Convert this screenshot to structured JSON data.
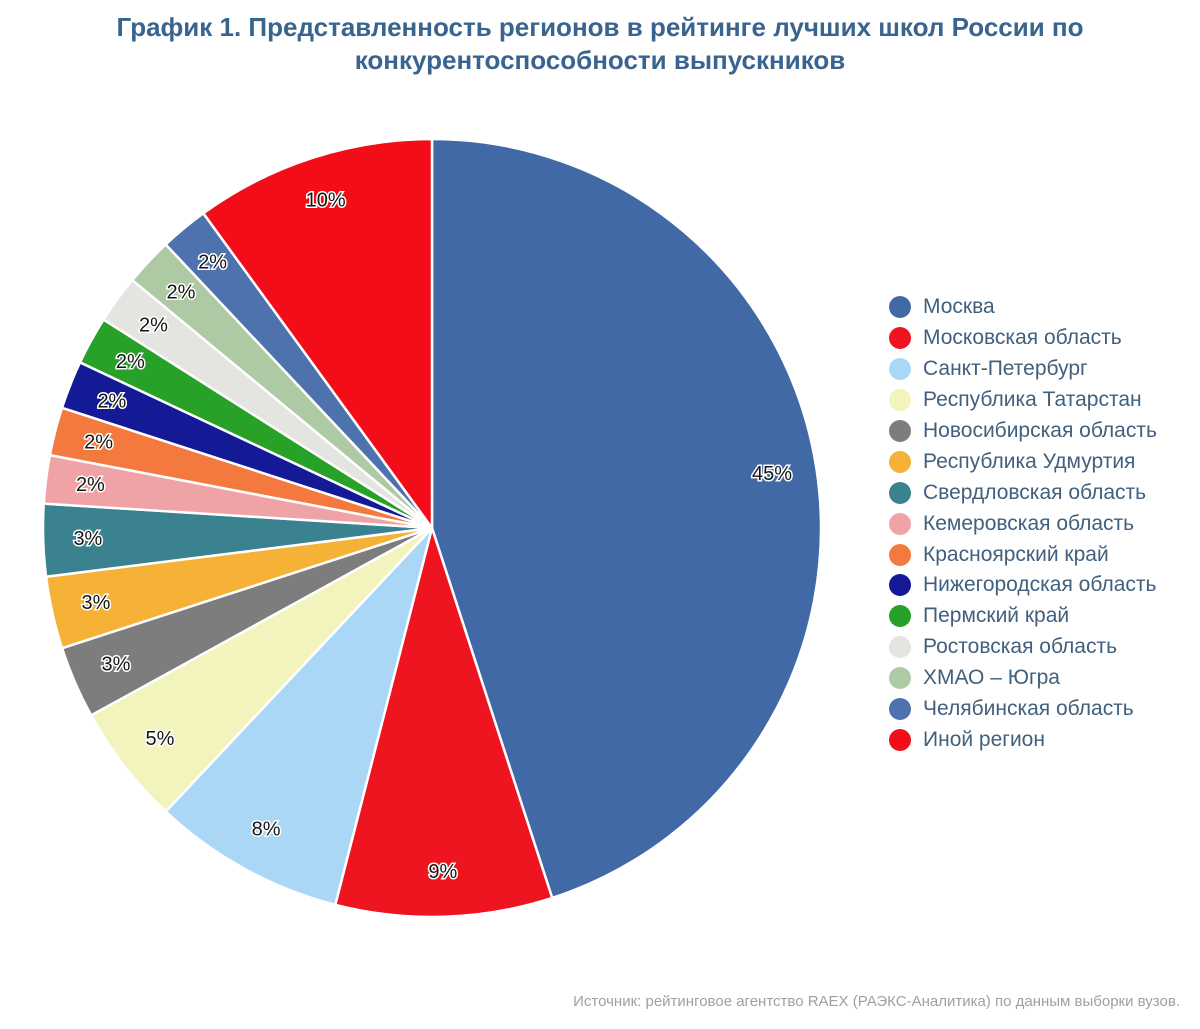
{
  "page": {
    "background_color": "#ffffff",
    "title_color": "#3a6490",
    "legend_text_color": "#41607e",
    "source_text_color": "#a0a0a0",
    "source_note": "Источник: рейтинговое агентство RAEX (РАЭКС-Аналитика) по данным выборки вузов."
  },
  "chart_data": {
    "type": "pie",
    "title": "График 1. Представленность регионов в рейтинге лучших школ России по конкурентоспособности выпускников",
    "unit": "%",
    "direction": "clockwise",
    "start_angle_deg": 0,
    "legend_position": "right",
    "slice_label_format": "value%",
    "segments": [
      {
        "label": "Москва",
        "value": 45,
        "pct_label": "45%",
        "color": "#4169a5"
      },
      {
        "label": "Московская область",
        "value": 9,
        "pct_label": "9%",
        "color": "#ee1420"
      },
      {
        "label": "Санкт-Петербург",
        "value": 8,
        "pct_label": "8%",
        "color": "#a9d7f5"
      },
      {
        "label": "Республика Татарстан",
        "value": 5,
        "pct_label": "5%",
        "color": "#f3f3bd"
      },
      {
        "label": "Новосибирская область",
        "value": 3,
        "pct_label": "3%",
        "color": "#7d7d7d"
      },
      {
        "label": "Республика Удмуртия",
        "value": 3,
        "pct_label": "3%",
        "color": "#f6b137"
      },
      {
        "label": "Свердловская область",
        "value": 3,
        "pct_label": "3%",
        "color": "#3a8290"
      },
      {
        "label": "Кемеровская область",
        "value": 2,
        "pct_label": "2%",
        "color": "#f0a3a6"
      },
      {
        "label": "Красноярский край",
        "value": 2,
        "pct_label": "2%",
        "color": "#f3793e"
      },
      {
        "label": "Нижегородская область",
        "value": 2,
        "pct_label": "2%",
        "color": "#141996"
      },
      {
        "label": "Пермский край",
        "value": 2,
        "pct_label": "2%",
        "color": "#27a127"
      },
      {
        "label": "Ростовская область",
        "value": 2,
        "pct_label": "2%",
        "color": "#e4e4e0"
      },
      {
        "label": "ХМАО – Югра",
        "value": 2,
        "pct_label": "2%",
        "color": "#aecaa5"
      },
      {
        "label": "Челябинская область",
        "value": 2,
        "pct_label": "2%",
        "color": "#4d72ad"
      },
      {
        "label": "Иной регион",
        "value": 10,
        "pct_label": "10%",
        "color": "#f20d18"
      }
    ]
  }
}
